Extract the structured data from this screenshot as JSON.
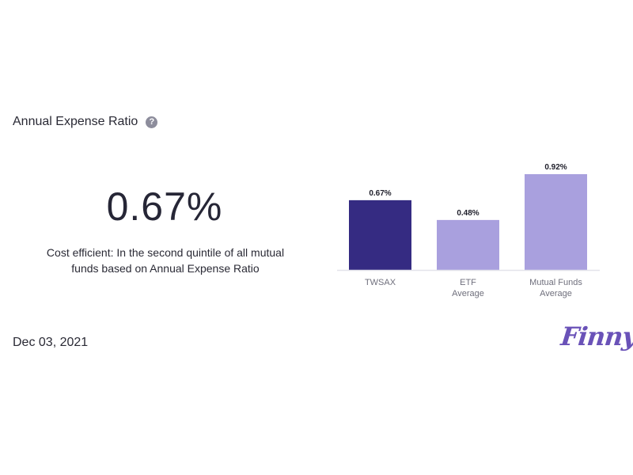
{
  "header": {
    "title": "Annual Expense Ratio",
    "help_icon": "question-circle-icon",
    "help_glyph": "?"
  },
  "summary": {
    "value": "0.67%",
    "description": "Cost efficient: In the second quintile of all mutual funds based on Annual Expense Ratio"
  },
  "footer": {
    "date": "Dec 03, 2021",
    "logo_text": "Finny"
  },
  "colors": {
    "primary_bar": "#352b82",
    "secondary_bar": "#a9a0de",
    "axis": "#e3e3ea",
    "logo": "#6a52b8"
  },
  "chart_data": {
    "type": "bar",
    "categories": [
      [
        "TWSAX"
      ],
      [
        "ETF",
        "Average"
      ],
      [
        "Mutual Funds",
        "Average"
      ]
    ],
    "values": [
      0.67,
      0.48,
      0.92
    ],
    "value_labels": [
      "0.67%",
      "0.48%",
      "0.92%"
    ],
    "highlight_index": 0,
    "ylim": [
      0,
      0.92
    ],
    "grid": false,
    "title": "",
    "xlabel": "",
    "ylabel": ""
  }
}
